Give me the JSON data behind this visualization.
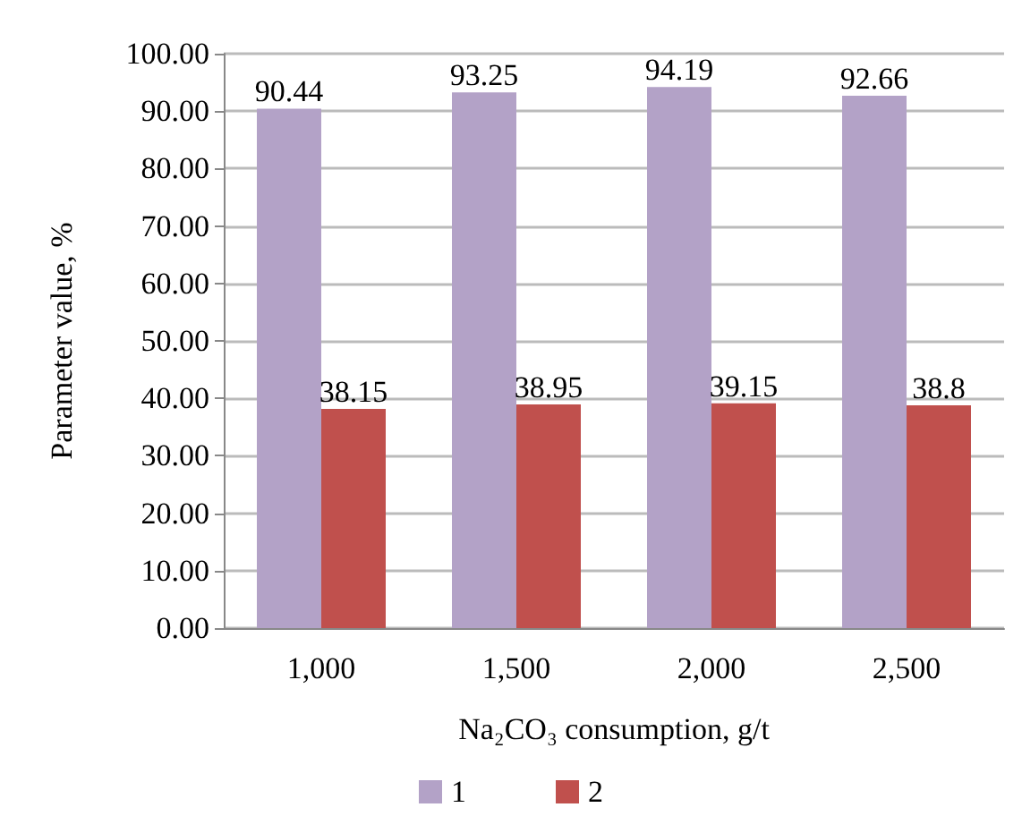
{
  "chart_data": {
    "type": "bar",
    "xlabel": "Na₂CO₃ consumption, g/t",
    "ylabel": "Parameter value, %",
    "categories": [
      "1,000",
      "1,500",
      "2,000",
      "2,500"
    ],
    "series": [
      {
        "name": "1",
        "color": "#b3a2c7",
        "values": [
          90.44,
          93.25,
          94.19,
          92.66
        ],
        "value_labels": [
          "90.44",
          "93.25",
          "94.19",
          "92.66"
        ]
      },
      {
        "name": "2",
        "color": "#c0504d",
        "values": [
          38.15,
          38.95,
          39.15,
          38.8
        ],
        "value_labels": [
          "38.15",
          "38.95",
          "39.15",
          "38.8"
        ]
      }
    ],
    "ylim": [
      0,
      100
    ],
    "yticks": [
      {
        "value": 0,
        "label": "0.00"
      },
      {
        "value": 10,
        "label": "10.00"
      },
      {
        "value": 20,
        "label": "20.00"
      },
      {
        "value": 30,
        "label": "30.00"
      },
      {
        "value": 40,
        "label": "40.00"
      },
      {
        "value": 50,
        "label": "50.00"
      },
      {
        "value": 60,
        "label": "60.00"
      },
      {
        "value": 70,
        "label": "70.00"
      },
      {
        "value": 80,
        "label": "80.00"
      },
      {
        "value": 90,
        "label": "90.00"
      },
      {
        "value": 100,
        "label": "100.00"
      }
    ],
    "grid": "y",
    "legend": "bottom"
  }
}
